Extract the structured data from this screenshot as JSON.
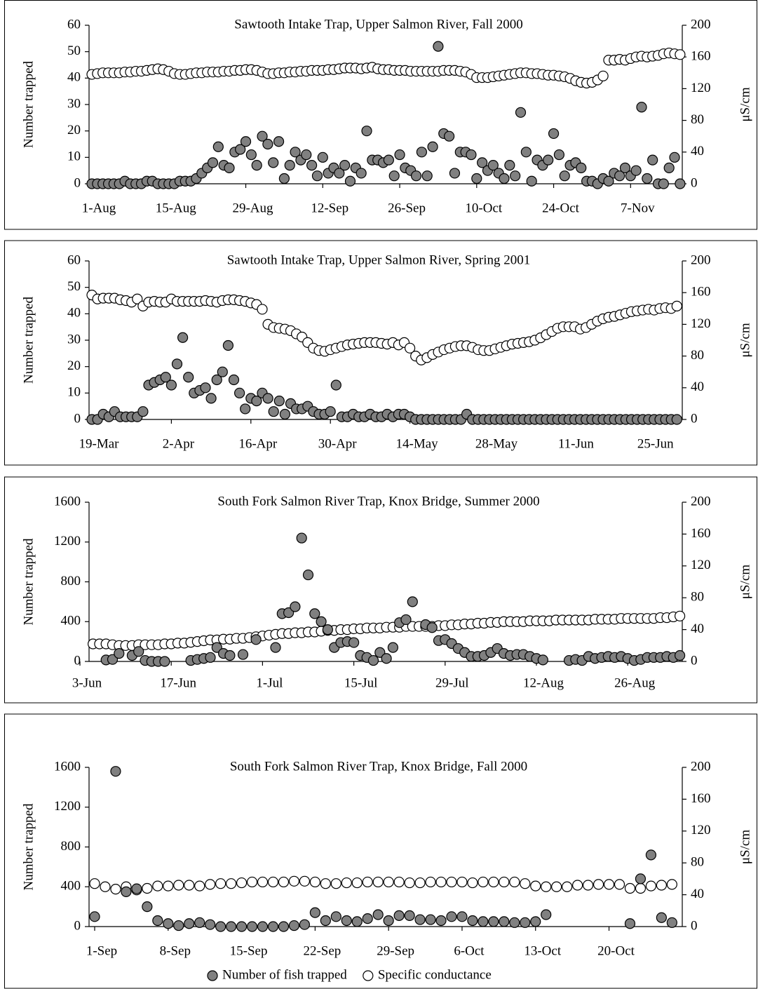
{
  "chart_data": [
    {
      "type": "scatter",
      "title": "Sawtooth Intake Trap, Upper Salmon River, Fall 2000",
      "ylabel": "Number trapped",
      "y2label": "μS/cm",
      "categories": [
        "1-Aug",
        null,
        null,
        null,
        null,
        null,
        null,
        null,
        null,
        null,
        null,
        null,
        null,
        null,
        "15-Aug",
        null,
        null,
        null,
        null,
        null,
        null,
        null,
        null,
        null,
        null,
        null,
        null,
        null,
        "29-Aug",
        null,
        null,
        null,
        null,
        null,
        null,
        null,
        null,
        null,
        null,
        null,
        null,
        null,
        "12-Sep",
        null,
        null,
        null,
        null,
        null,
        null,
        null,
        null,
        null,
        null,
        null,
        null,
        null,
        "26-Sep",
        null,
        null,
        null,
        null,
        null,
        null,
        null,
        null,
        null,
        null,
        null,
        null,
        null,
        "10-Oct",
        null,
        null,
        null,
        null,
        null,
        null,
        null,
        null,
        null,
        null,
        null,
        null,
        null,
        "24-Oct",
        null,
        null,
        null,
        null,
        null,
        null,
        null,
        null,
        null,
        null,
        null,
        null,
        null,
        "7-Nov",
        null,
        null,
        null,
        null,
        null,
        null,
        null,
        null,
        null
      ],
      "ylim": [
        0,
        60
      ],
      "yticks": [
        0,
        10,
        20,
        30,
        40,
        50,
        60
      ],
      "y2lim": [
        0,
        200
      ],
      "y2ticks": [
        0,
        40,
        80,
        120,
        160,
        200
      ],
      "series": [
        {
          "color": "#808080",
          "values": [
            0,
            0,
            0,
            0,
            0,
            0,
            1,
            0,
            0,
            0,
            1,
            1,
            0,
            0,
            0,
            0,
            1,
            1,
            1,
            2,
            4,
            6,
            8,
            14,
            7,
            6,
            12,
            13,
            16,
            11,
            7,
            18,
            15,
            8,
            16,
            2,
            7,
            12,
            9,
            11,
            7,
            3,
            10,
            4,
            6,
            4,
            7,
            1,
            6,
            4,
            20,
            9,
            9,
            8,
            9,
            3,
            11,
            6,
            5,
            3,
            12,
            3,
            14,
            52,
            19,
            18,
            4,
            12,
            12,
            11,
            2,
            8,
            5,
            7,
            4,
            2,
            7,
            3,
            27,
            12,
            1,
            9,
            7,
            9,
            19,
            11,
            3,
            7,
            8,
            6,
            1,
            1,
            0,
            2,
            1,
            4,
            3,
            6,
            3,
            5,
            29,
            2,
            9,
            0,
            0,
            6,
            10,
            0
          ]
        },
        {
          "color": "#ffffff",
          "axis": "y2",
          "values": [
            138,
            139,
            140,
            140,
            140,
            140,
            141,
            141,
            142,
            142,
            143,
            144,
            145,
            144,
            142,
            139,
            138,
            138,
            139,
            140,
            140,
            141,
            141,
            141,
            142,
            142,
            143,
            143,
            144,
            144,
            143,
            141,
            139,
            139,
            140,
            140,
            141,
            141,
            142,
            142,
            143,
            143,
            143,
            144,
            144,
            145,
            146,
            146,
            146,
            145,
            146,
            147,
            145,
            144,
            144,
            143,
            143,
            143,
            142,
            142,
            142,
            142,
            142,
            142,
            143,
            143,
            143,
            142,
            141,
            138,
            134,
            134,
            134,
            135,
            136,
            137,
            138,
            139,
            140,
            140,
            139,
            139,
            138,
            137,
            137,
            136,
            135,
            133,
            130,
            128,
            127,
            128,
            131,
            136,
            156,
            156,
            157,
            156,
            158,
            160,
            161,
            160,
            161,
            162,
            164,
            165,
            164,
            163
          ]
        }
      ]
    },
    {
      "type": "scatter",
      "title": "Sawtooth Intake Trap, Upper Salmon River, Spring 2001",
      "ylabel": "Number trapped",
      "y2label": "μS/cm",
      "categories": [
        "19-Mar",
        null,
        null,
        null,
        null,
        null,
        null,
        null,
        null,
        null,
        null,
        null,
        null,
        null,
        "2-Apr",
        null,
        null,
        null,
        null,
        null,
        null,
        null,
        null,
        null,
        null,
        null,
        null,
        null,
        "16-Apr",
        null,
        null,
        null,
        null,
        null,
        null,
        null,
        null,
        null,
        null,
        null,
        null,
        null,
        "30-Apr",
        null,
        null,
        null,
        null,
        null,
        null,
        null,
        null,
        null,
        null,
        null,
        null,
        null,
        "14-May",
        null,
        null,
        null,
        null,
        null,
        null,
        null,
        null,
        null,
        null,
        null,
        null,
        null,
        "28-May",
        null,
        null,
        null,
        null,
        null,
        null,
        null,
        null,
        null,
        null,
        null,
        null,
        null,
        "11-Jun",
        null,
        null,
        null,
        null,
        null,
        null,
        null,
        null,
        null,
        null,
        null,
        null,
        null,
        "25-Jun",
        null,
        null,
        null,
        null,
        null
      ],
      "ylim": [
        0,
        60
      ],
      "yticks": [
        0,
        10,
        20,
        30,
        40,
        50,
        60
      ],
      "y2lim": [
        0,
        200
      ],
      "y2ticks": [
        0,
        40,
        80,
        120,
        160,
        200
      ],
      "series": [
        {
          "color": "#808080",
          "values": [
            0,
            0,
            2,
            1,
            3,
            1,
            1,
            1,
            1,
            3,
            13,
            14,
            15,
            16,
            13,
            21,
            31,
            16,
            10,
            11,
            12,
            8,
            15,
            18,
            28,
            15,
            10,
            4,
            8,
            7,
            10,
            8,
            3,
            7,
            2,
            6,
            4,
            4,
            5,
            3,
            2,
            2,
            3,
            13,
            1,
            1,
            2,
            1,
            1,
            2,
            1,
            1,
            2,
            1,
            2,
            2,
            1,
            0,
            0,
            0,
            0,
            0,
            0,
            0,
            0,
            0,
            2,
            0,
            0,
            0,
            0,
            0,
            0,
            0,
            0,
            0,
            0,
            0,
            0,
            0,
            0,
            0,
            0,
            0,
            0,
            0,
            0,
            0,
            0,
            0,
            0,
            0,
            0,
            0,
            0,
            0,
            0,
            0,
            0,
            0,
            0,
            0,
            0,
            0
          ]
        },
        {
          "color": "#ffffff",
          "axis": "y2",
          "values": [
            157,
            152,
            153,
            153,
            153,
            151,
            150,
            148,
            152,
            143,
            148,
            149,
            148,
            148,
            152,
            149,
            149,
            149,
            149,
            149,
            150,
            149,
            148,
            150,
            151,
            151,
            150,
            149,
            147,
            145,
            139,
            120,
            116,
            115,
            114,
            112,
            108,
            104,
            97,
            90,
            87,
            86,
            88,
            90,
            92,
            94,
            95,
            96,
            97,
            97,
            97,
            96,
            95,
            97,
            94,
            97,
            90,
            80,
            75,
            78,
            82,
            85,
            88,
            90,
            92,
            93,
            93,
            91,
            88,
            87,
            87,
            89,
            91,
            93,
            95,
            96,
            97,
            98,
            100,
            103,
            107,
            111,
            115,
            117,
            117,
            117,
            114,
            116,
            120,
            124,
            127,
            129,
            130,
            132,
            134,
            136,
            137,
            138,
            139,
            138,
            140,
            141,
            140,
            143
          ]
        }
      ]
    },
    {
      "type": "scatter",
      "title": "South Fork Salmon River Trap, Knox Bridge, Summer 2000",
      "ylabel": "Number trapped",
      "y2label": "μS/cm",
      "categories": [
        "3-Jun",
        null,
        null,
        null,
        null,
        null,
        null,
        null,
        null,
        null,
        null,
        null,
        null,
        null,
        "17-Jun",
        null,
        null,
        null,
        null,
        null,
        null,
        null,
        null,
        null,
        null,
        null,
        null,
        null,
        "1-Jul",
        null,
        null,
        null,
        null,
        null,
        null,
        null,
        null,
        null,
        null,
        null,
        null,
        null,
        "15-Jul",
        null,
        null,
        null,
        null,
        null,
        null,
        null,
        null,
        null,
        null,
        null,
        null,
        null,
        "29-Jul",
        null,
        null,
        null,
        null,
        null,
        null,
        null,
        null,
        null,
        null,
        null,
        null,
        null,
        "12-Aug",
        null,
        null,
        null,
        null,
        null,
        null,
        null,
        null,
        null,
        null,
        null,
        null,
        null,
        "26-Aug",
        null,
        null,
        null,
        null,
        null,
        null,
        null,
        null
      ],
      "ylim": [
        0,
        1600
      ],
      "yticks": [
        0,
        400,
        800,
        1200,
        1600
      ],
      "y2lim": [
        0,
        200
      ],
      "y2ticks": [
        0,
        40,
        80,
        120,
        160,
        200
      ],
      "series": [
        {
          "color": "#808080",
          "values": [
            null,
            null,
            null,
            null,
            15,
            20,
            80,
            null,
            60,
            100,
            10,
            0,
            0,
            0,
            null,
            null,
            null,
            10,
            20,
            30,
            40,
            140,
            80,
            60,
            null,
            70,
            null,
            220,
            null,
            null,
            140,
            480,
            490,
            550,
            1240,
            870,
            480,
            400,
            320,
            140,
            190,
            200,
            190,
            60,
            40,
            10,
            90,
            30,
            140,
            390,
            420,
            600,
            null,
            370,
            340,
            210,
            220,
            180,
            130,
            90,
            50,
            50,
            60,
            90,
            130,
            80,
            60,
            70,
            70,
            50,
            30,
            15,
            null,
            null,
            null,
            10,
            20,
            10,
            50,
            30,
            40,
            50,
            40,
            50,
            30,
            10,
            20,
            40,
            40,
            40,
            50,
            40,
            60
          ]
        },
        {
          "color": "#ffffff",
          "axis": "y2",
          "values": [
            null,
            null,
            22,
            22,
            22,
            21,
            20,
            20,
            20,
            21,
            21,
            21,
            21,
            22,
            22,
            23,
            23,
            24,
            25,
            26,
            27,
            27,
            28,
            28,
            29,
            29,
            30,
            31,
            32,
            33,
            34,
            35,
            35,
            36,
            36,
            37,
            37,
            38,
            39,
            39,
            40,
            40,
            41,
            41,
            42,
            42,
            42,
            43,
            43,
            43,
            44,
            44,
            44,
            44,
            44,
            45,
            45,
            46,
            46,
            47,
            47,
            48,
            48,
            49,
            49,
            50,
            50,
            50,
            50,
            51,
            51,
            51,
            51,
            52,
            52,
            52,
            52,
            52,
            52,
            53,
            53,
            53,
            53,
            54,
            54,
            54,
            54,
            54,
            54,
            55,
            55,
            56,
            57
          ]
        }
      ]
    },
    {
      "type": "scatter",
      "title": "South Fork Salmon River Trap, Knox Bridge, Fall 2000",
      "ylabel": "Number trapped",
      "y2label": "μS/cm",
      "legend": "bottom",
      "categories": [
        "1-Sep",
        null,
        null,
        null,
        null,
        null,
        null,
        "8-Sep",
        null,
        null,
        null,
        null,
        null,
        null,
        "15-Sep",
        null,
        null,
        null,
        null,
        null,
        null,
        "22-Sep",
        null,
        null,
        null,
        null,
        null,
        null,
        "29-Sep",
        null,
        null,
        null,
        null,
        null,
        null,
        "6-Oct",
        null,
        null,
        null,
        null,
        null,
        null,
        "13-Oct",
        null,
        null,
        null,
        null,
        null,
        null,
        "20-Oct",
        null,
        null,
        null,
        null,
        null,
        null
      ],
      "ylim": [
        0,
        1600
      ],
      "yticks": [
        0,
        400,
        800,
        1200,
        1600
      ],
      "y2lim": [
        0,
        200
      ],
      "y2ticks": [
        0,
        40,
        80,
        120,
        160,
        200
      ],
      "series": [
        {
          "name": "Number of fish trapped",
          "color": "#808080",
          "values": [
            100,
            null,
            1560,
            350,
            380,
            200,
            60,
            30,
            10,
            30,
            40,
            20,
            0,
            0,
            0,
            0,
            0,
            0,
            0,
            10,
            20,
            140,
            60,
            100,
            60,
            50,
            80,
            120,
            60,
            110,
            110,
            70,
            70,
            60,
            100,
            100,
            60,
            50,
            50,
            50,
            40,
            40,
            50,
            120,
            null,
            null,
            null,
            null,
            null,
            null,
            null,
            30,
            480,
            720,
            90,
            40
          ]
        },
        {
          "name": "Specific conductance",
          "color": "#ffffff",
          "axis": "y2",
          "values": [
            54,
            50,
            47,
            50,
            46,
            48,
            51,
            51,
            52,
            52,
            51,
            53,
            54,
            54,
            55,
            56,
            56,
            56,
            56,
            57,
            57,
            56,
            54,
            54,
            55,
            55,
            56,
            56,
            56,
            56,
            55,
            55,
            56,
            56,
            56,
            56,
            55,
            56,
            56,
            56,
            56,
            54,
            51,
            50,
            50,
            50,
            52,
            52,
            53,
            53,
            53,
            48,
            48,
            51,
            52,
            53
          ]
        }
      ]
    }
  ]
}
